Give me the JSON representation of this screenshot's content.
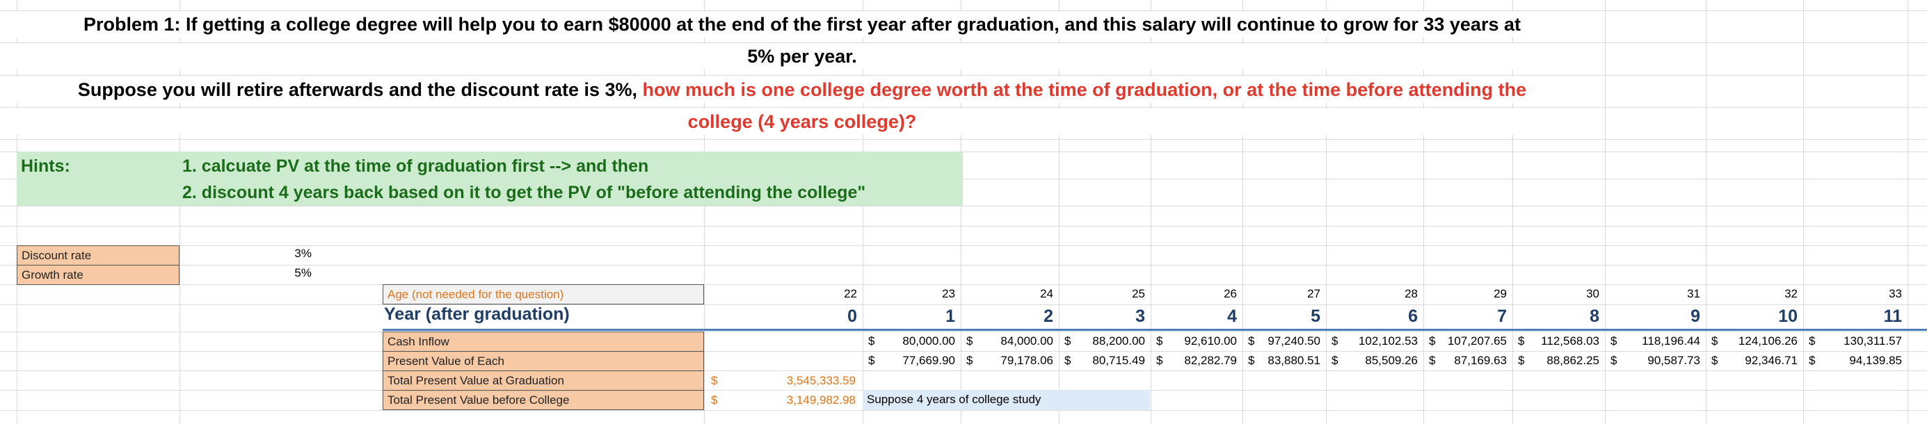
{
  "title": {
    "line1": "Problem 1: If getting a college degree will help you to earn $80000 at the end of the first year after graduation, and this salary will continue to grow for 33 years at",
    "line2": "5% per year.",
    "line3_black": "Suppose you will retire afterwards and the discount rate is 3%, ",
    "line3_red": "how much is one college degree worth at the time of graduation, or at the time before attending the",
    "line4_red": "college (4 years college)?"
  },
  "hints": {
    "label": "Hints:",
    "line1": "1. calcuate PV at the time of graduation first --> and then",
    "line2": "2.  discount 4 years back based on it to get the PV of \"before attending the college\""
  },
  "inputs": {
    "discount_label": "Discount rate",
    "discount_value": "3%",
    "growth_label": "Growth rate",
    "growth_value": "5%"
  },
  "table": {
    "age_label": "Age (not needed for the question)",
    "year_label": "Year (after graduation)",
    "cash_label": "Cash Inflow",
    "pv_label": "Present Value of Each",
    "total_grad_label": "Total Present Value at Graduation",
    "total_before_label": "Total Present Value before College",
    "dollar": "$",
    "total_grad_value": "3,545,333.59",
    "total_before_value": "3,149,982.98",
    "note": "Suppose 4 years of college study",
    "columns": [
      {
        "age": "22",
        "year": "0",
        "cash": "",
        "pv": ""
      },
      {
        "age": "23",
        "year": "1",
        "cash": "80,000.00",
        "pv": "77,669.90"
      },
      {
        "age": "24",
        "year": "2",
        "cash": "84,000.00",
        "pv": "79,178.06"
      },
      {
        "age": "25",
        "year": "3",
        "cash": "88,200.00",
        "pv": "80,715.49"
      },
      {
        "age": "26",
        "year": "4",
        "cash": "92,610.00",
        "pv": "82,282.79"
      },
      {
        "age": "27",
        "year": "5",
        "cash": "97,240.50",
        "pv": "83,880.51"
      },
      {
        "age": "28",
        "year": "6",
        "cash": "102,102.53",
        "pv": "85,509.26"
      },
      {
        "age": "29",
        "year": "7",
        "cash": "107,207.65",
        "pv": "87,169.63"
      },
      {
        "age": "30",
        "year": "8",
        "cash": "112,568.03",
        "pv": "88,862.25"
      },
      {
        "age": "31",
        "year": "9",
        "cash": "118,196.44",
        "pv": "90,587.73"
      },
      {
        "age": "32",
        "year": "10",
        "cash": "124,106.26",
        "pv": "92,346.71"
      },
      {
        "age": "33",
        "year": "11",
        "cash": "130,311.57",
        "pv": "94,139.85"
      }
    ]
  }
}
